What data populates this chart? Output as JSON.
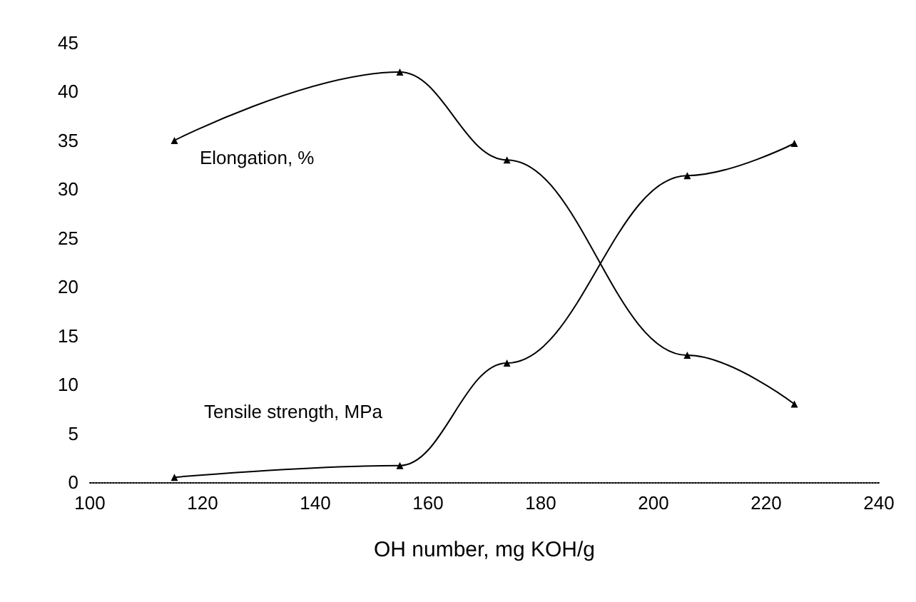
{
  "chart_data": {
    "type": "line",
    "xlabel": "OH number, mg KOH/g",
    "x": [
      115,
      155,
      174,
      206,
      225
    ],
    "series": [
      {
        "name": "Elongation, %",
        "color": "#000000",
        "values": [
          35,
          42,
          33,
          13,
          8
        ]
      },
      {
        "name": "Tensile strength, MPa",
        "color": "#000000",
        "values": [
          0.5,
          1.7,
          12.2,
          31.4,
          34.7
        ]
      }
    ],
    "xlim": [
      100,
      240
    ],
    "xticks": [
      100,
      120,
      140,
      160,
      180,
      200,
      220,
      240
    ],
    "ylim": [
      0,
      45
    ],
    "yticks": [
      0,
      5,
      10,
      15,
      20,
      25,
      30,
      35,
      40,
      45
    ],
    "grid": false,
    "legend": false,
    "marker": "triangle",
    "line_style": "solid"
  }
}
